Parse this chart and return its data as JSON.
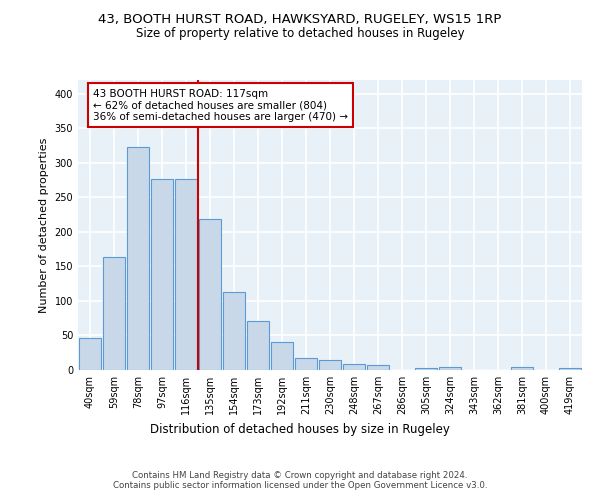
{
  "title1": "43, BOOTH HURST ROAD, HAWKSYARD, RUGELEY, WS15 1RP",
  "title2": "Size of property relative to detached houses in Rugeley",
  "xlabel": "Distribution of detached houses by size in Rugeley",
  "ylabel": "Number of detached properties",
  "categories": [
    "40sqm",
    "59sqm",
    "78sqm",
    "97sqm",
    "116sqm",
    "135sqm",
    "154sqm",
    "173sqm",
    "192sqm",
    "211sqm",
    "230sqm",
    "248sqm",
    "267sqm",
    "286sqm",
    "305sqm",
    "324sqm",
    "343sqm",
    "362sqm",
    "381sqm",
    "400sqm",
    "419sqm"
  ],
  "values": [
    47,
    163,
    323,
    277,
    277,
    219,
    113,
    71,
    40,
    17,
    15,
    8,
    7,
    0,
    3,
    4,
    0,
    0,
    4,
    0,
    3
  ],
  "bar_color": "#c8d8e8",
  "bar_edge_color": "#5b9bd5",
  "vline_index": 4,
  "vline_color": "#cc0000",
  "annotation_text": "43 BOOTH HURST ROAD: 117sqm\n← 62% of detached houses are smaller (804)\n36% of semi-detached houses are larger (470) →",
  "annotation_box_color": "white",
  "annotation_box_edge": "#cc0000",
  "footer": "Contains HM Land Registry data © Crown copyright and database right 2024.\nContains public sector information licensed under the Open Government Licence v3.0.",
  "ylim": [
    0,
    420
  ],
  "background_color": "#e8f0f8",
  "grid_color": "white",
  "title1_fontsize": 9.5,
  "title2_fontsize": 8.5,
  "ylabel_fontsize": 8,
  "xlabel_fontsize": 8.5,
  "tick_fontsize": 7,
  "footer_fontsize": 6.2,
  "annotation_fontsize": 7.5
}
